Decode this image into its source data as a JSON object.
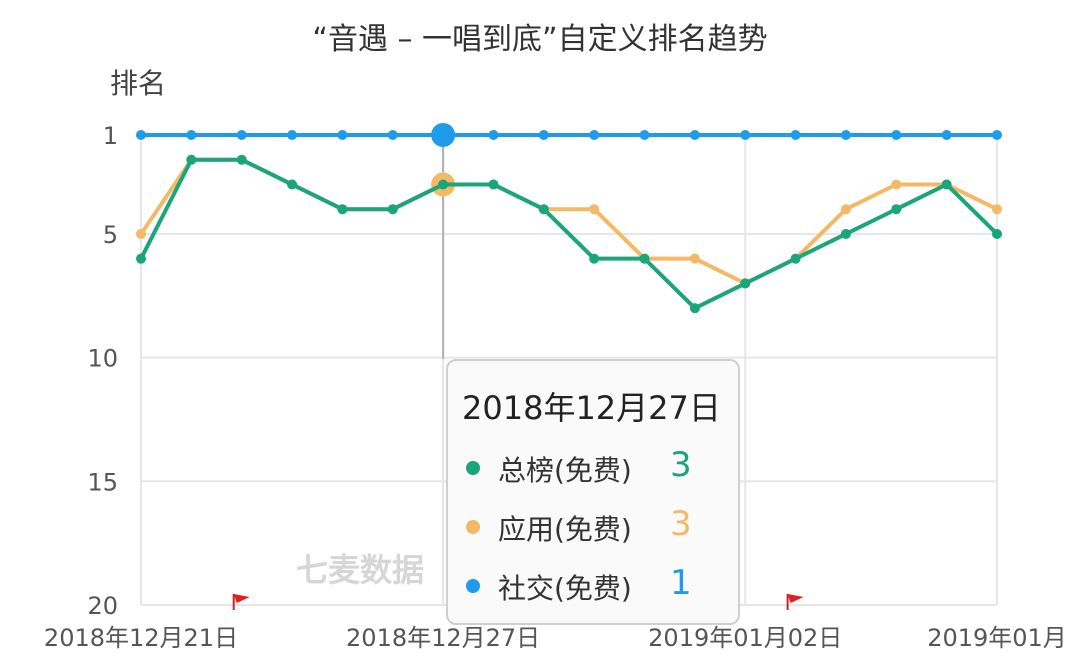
{
  "chart_data": {
    "type": "line",
    "title": "“音遇 – 一唱到底”自定义排名趋势",
    "ylabel": "排名",
    "y_axis": {
      "min": 1,
      "max": 20,
      "inverted": true,
      "ticks": [
        1,
        5,
        10,
        15,
        20
      ]
    },
    "x": [
      "2018-12-21",
      "2018-12-22",
      "2018-12-23",
      "2018-12-24",
      "2018-12-25",
      "2018-12-26",
      "2018-12-27",
      "2018-12-28",
      "2018-12-29",
      "2018-12-30",
      "2018-12-31",
      "2019-01-01",
      "2019-01-02",
      "2019-01-03",
      "2019-01-04",
      "2019-01-05",
      "2019-01-06",
      "2019-01-07"
    ],
    "x_tick_labels": [
      {
        "index": 0,
        "label": "2018年12月21日"
      },
      {
        "index": 6,
        "label": "2018年12月27日"
      },
      {
        "index": 12,
        "label": "2019年01月02日"
      },
      {
        "index": 17,
        "label": "2019年01月"
      }
    ],
    "grid": true,
    "series": [
      {
        "name": "总榜(免费)",
        "color": "#1aa57a",
        "values": [
          6,
          2,
          2,
          3,
          4,
          4,
          3,
          3,
          4,
          6,
          6,
          8,
          7,
          6,
          5,
          4,
          3,
          5
        ]
      },
      {
        "name": "应用(免费)",
        "color": "#f5b965",
        "values": [
          5,
          2,
          2,
          3,
          4,
          4,
          3,
          3,
          4,
          4,
          6,
          6,
          7,
          6,
          4,
          3,
          3,
          4
        ]
      },
      {
        "name": "社交(免费)",
        "color": "#1e9be9",
        "values": [
          1,
          1,
          1,
          1,
          1,
          1,
          1,
          1,
          1,
          1,
          1,
          1,
          1,
          1,
          1,
          1,
          1,
          1
        ]
      }
    ],
    "hover_index": 6,
    "event_flag_indices": [
      2,
      13
    ]
  },
  "tooltip": {
    "date": "2018年12月27日",
    "rows": [
      {
        "name": "总榜(免费)",
        "value": "3",
        "color": "#1aa57a"
      },
      {
        "name": "应用(免费)",
        "value": "3",
        "color": "#f5b965"
      },
      {
        "name": "社交(免费)",
        "value": "1",
        "color": "#1e9be9"
      }
    ]
  },
  "watermark": "七麦数据"
}
